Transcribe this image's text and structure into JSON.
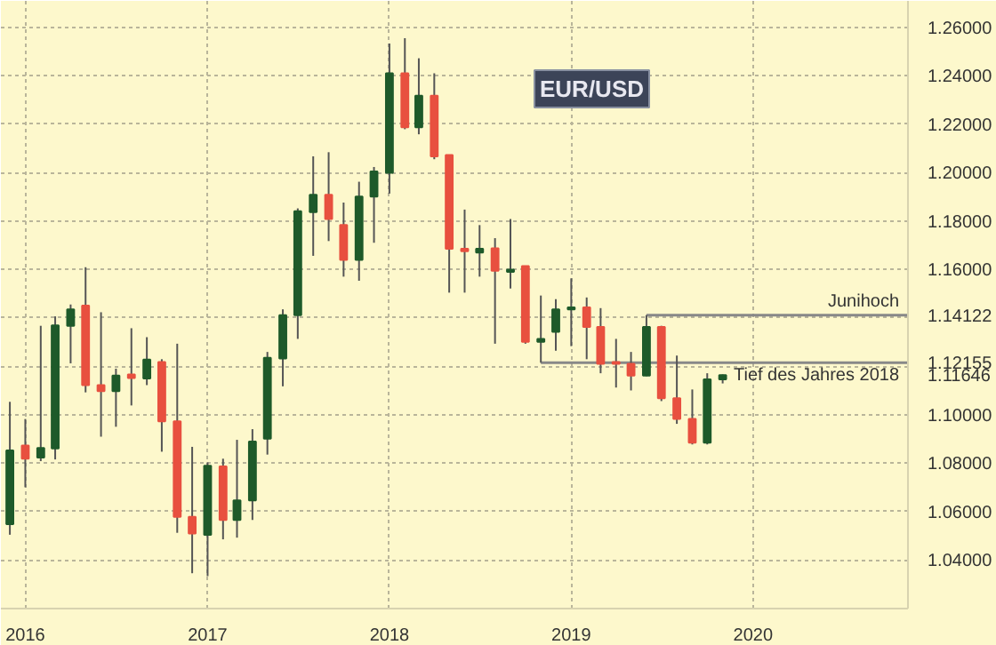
{
  "chart_data": {
    "type": "candlestick",
    "title": "EUR/USD",
    "x": [
      "2015-12",
      "2016-01",
      "2016-02",
      "2016-03",
      "2016-04",
      "2016-05",
      "2016-06",
      "2016-07",
      "2016-08",
      "2016-09",
      "2016-10",
      "2016-11",
      "2016-12",
      "2017-01",
      "2017-02",
      "2017-03",
      "2017-04",
      "2017-05",
      "2017-06",
      "2017-07",
      "2017-08",
      "2017-09",
      "2017-10",
      "2017-11",
      "2017-12",
      "2018-01",
      "2018-02",
      "2018-03",
      "2018-04",
      "2018-05",
      "2018-06",
      "2018-07",
      "2018-08",
      "2018-09",
      "2018-10",
      "2018-11",
      "2018-12",
      "2019-01",
      "2019-02",
      "2019-03",
      "2019-04",
      "2019-05",
      "2019-06",
      "2019-07",
      "2019-08",
      "2019-09",
      "2019-10",
      "2019-11"
    ],
    "ohlc": [
      [
        1.0549,
        1.1054,
        1.0505,
        1.0853
      ],
      [
        1.0873,
        1.0983,
        1.0701,
        1.0819
      ],
      [
        1.0824,
        1.1368,
        1.0809,
        1.0863
      ],
      [
        1.0861,
        1.1407,
        1.0816,
        1.137
      ],
      [
        1.1368,
        1.1456,
        1.1213,
        1.1436
      ],
      [
        1.1451,
        1.161,
        1.1093,
        1.1123
      ],
      [
        1.1123,
        1.1424,
        1.091,
        1.1098
      ],
      [
        1.1098,
        1.1191,
        1.0951,
        1.1162
      ],
      [
        1.1167,
        1.1358,
        1.1039,
        1.1152
      ],
      [
        1.115,
        1.1321,
        1.1123,
        1.1228
      ],
      [
        1.1218,
        1.123,
        1.0848,
        1.0973
      ],
      [
        1.0973,
        1.1294,
        1.0513,
        1.0579
      ],
      [
        1.0579,
        1.0868,
        1.0346,
        1.051
      ],
      [
        1.0505,
        1.0804,
        1.0334,
        1.079
      ],
      [
        1.0787,
        1.0819,
        1.0486,
        1.0566
      ],
      [
        1.0566,
        1.0897,
        1.0493,
        1.0647
      ],
      [
        1.0647,
        1.0941,
        1.0566,
        1.089
      ],
      [
        1.0902,
        1.126,
        1.0836,
        1.1236
      ],
      [
        1.1233,
        1.1436,
        1.1118,
        1.1412
      ],
      [
        1.1412,
        1.1853,
        1.1314,
        1.1841
      ],
      [
        1.1838,
        1.2068,
        1.1657,
        1.1909
      ],
      [
        1.1909,
        1.2085,
        1.1718,
        1.1809
      ],
      [
        1.1784,
        1.1877,
        1.1571,
        1.164
      ],
      [
        1.164,
        1.1963,
        1.1554,
        1.1902
      ],
      [
        1.1902,
        1.2024,
        1.1711,
        1.2005
      ],
      [
        1.2,
        1.2534,
        1.1914,
        1.2411
      ],
      [
        1.2411,
        1.2556,
        1.218,
        1.2188
      ],
      [
        1.2188,
        1.2473,
        1.2159,
        1.2318
      ],
      [
        1.2318,
        1.2411,
        1.2056,
        1.2068
      ],
      [
        1.2073,
        1.2073,
        1.1505,
        1.1686
      ],
      [
        1.1686,
        1.1848,
        1.1505,
        1.1676
      ],
      [
        1.1671,
        1.1784,
        1.1571,
        1.1686
      ],
      [
        1.1688,
        1.173,
        1.1294,
        1.1595
      ],
      [
        1.1591,
        1.1809,
        1.1522,
        1.16
      ],
      [
        1.1615,
        1.1615,
        1.1294,
        1.1302
      ],
      [
        1.1302,
        1.1493,
        1.12155,
        1.1314
      ],
      [
        1.1343,
        1.1478,
        1.1265,
        1.1436
      ],
      [
        1.1436,
        1.1564,
        1.1284,
        1.1444
      ],
      [
        1.1444,
        1.1485,
        1.123,
        1.1363
      ],
      [
        1.1363,
        1.1441,
        1.1172,
        1.1211
      ],
      [
        1.1218,
        1.1314,
        1.1113,
        1.1211
      ],
      [
        1.1211,
        1.126,
        1.1101,
        1.1162
      ],
      [
        1.1162,
        1.14122,
        1.116,
        1.1363
      ],
      [
        1.1363,
        1.1368,
        1.1057,
        1.1069
      ],
      [
        1.1069,
        1.1245,
        1.0963,
        1.0983
      ],
      [
        1.0983,
        1.1105,
        1.0878,
        1.0885
      ],
      [
        1.0885,
        1.1172,
        1.0878,
        1.1147
      ],
      [
        1.1147,
        1.1167,
        1.113,
        1.11646
      ]
    ],
    "colors": [
      "#1e5a2a",
      "#e8503f",
      "#1e5a2a",
      "#1e5a2a",
      "#1e5a2a",
      "#e8503f",
      "#e8503f",
      "#1e5a2a",
      "#e8503f",
      "#1e5a2a",
      "#e8503f",
      "#e8503f",
      "#e8503f",
      "#1e5a2a",
      "#e8503f",
      "#1e5a2a",
      "#1e5a2a",
      "#1e5a2a",
      "#1e5a2a",
      "#1e5a2a",
      "#1e5a2a",
      "#e8503f",
      "#e8503f",
      "#1e5a2a",
      "#1e5a2a",
      "#1e5a2a",
      "#e8503f",
      "#1e5a2a",
      "#e8503f",
      "#e8503f",
      "#e8503f",
      "#1e5a2a",
      "#e8503f",
      "#1e5a2a",
      "#e8503f",
      "#1e5a2a",
      "#1e5a2a",
      "#1e5a2a",
      "#e8503f",
      "#e8503f",
      "#e8503f",
      "#e8503f",
      "#1e5a2a",
      "#e8503f",
      "#e8503f",
      "#e8503f",
      "#1e5a2a",
      "#1e5a2a"
    ],
    "xlim": [
      "2015-11-13",
      "2020-11-07"
    ],
    "xticks": [
      "2016",
      "2017",
      "2018",
      "2019",
      "2020"
    ],
    "ylim": [
      1.02,
      1.271
    ],
    "yticks": [
      {
        "value": 1.04,
        "label": "1.04000"
      },
      {
        "value": 1.06,
        "label": "1.06000"
      },
      {
        "value": 1.08,
        "label": "1.08000"
      },
      {
        "value": 1.1,
        "label": "1.10000"
      },
      {
        "value": 1.16,
        "label": "1.16000"
      },
      {
        "value": 1.18,
        "label": "1.18000"
      },
      {
        "value": 1.2,
        "label": "1.20000"
      },
      {
        "value": 1.22,
        "label": "1.22000"
      },
      {
        "value": 1.24,
        "label": "1.24000"
      },
      {
        "value": 1.26,
        "label": "1.26000"
      },
      {
        "value": 1.14122,
        "label": "1.14122"
      },
      {
        "value": 1.12155,
        "label": "1.12155"
      },
      {
        "value": 1.11646,
        "label": "1.11646"
      }
    ],
    "ref_lines": [
      {
        "axis": "y",
        "value": 1.14122,
        "label": "Junihoch",
        "color": "#888888"
      },
      {
        "axis": "y",
        "value": 1.12155,
        "label": "Tief des Jahres 2018",
        "color": "#888888"
      }
    ],
    "grid": true
  }
}
